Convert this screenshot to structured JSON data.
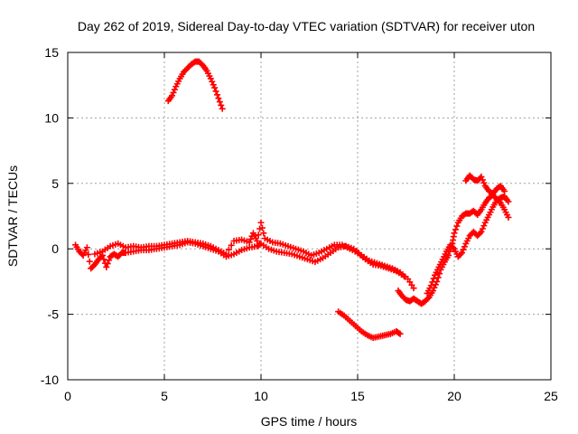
{
  "chart_data": {
    "type": "scatter",
    "title": "Day 262 of 2019, Sidereal Day-to-day VTEC variation (SDTVAR) for receiver uton",
    "xlabel": "GPS time / hours",
    "ylabel": "SDTVAR / TECUs",
    "xlim": [
      0,
      25
    ],
    "ylim": [
      -10,
      15
    ],
    "xticks": [
      0,
      5,
      10,
      15,
      20,
      25
    ],
    "yticks": [
      -10,
      -5,
      0,
      5,
      10,
      15
    ],
    "grid": true,
    "marker": "+",
    "color": "#ff0000",
    "series": [
      {
        "name": "arc-high-early",
        "points": [
          [
            5.2,
            11.3
          ],
          [
            5.4,
            11.7
          ],
          [
            5.6,
            12.4
          ],
          [
            5.8,
            13.0
          ],
          [
            6.0,
            13.5
          ],
          [
            6.2,
            13.8
          ],
          [
            6.4,
            14.1
          ],
          [
            6.6,
            14.3
          ],
          [
            6.8,
            14.3
          ],
          [
            7.0,
            14.0
          ],
          [
            7.2,
            13.6
          ],
          [
            7.4,
            13.0
          ],
          [
            7.6,
            12.3
          ],
          [
            7.8,
            11.5
          ],
          [
            8.0,
            10.7
          ]
        ]
      },
      {
        "name": "arc-main-a",
        "points": [
          [
            0.4,
            0.3
          ],
          [
            0.6,
            -0.2
          ],
          [
            0.8,
            -0.5
          ],
          [
            1.0,
            0.1
          ],
          [
            1.2,
            -1.5
          ],
          [
            1.4,
            -1.2
          ],
          [
            1.6,
            -0.8
          ],
          [
            1.8,
            -0.5
          ],
          [
            2.0,
            -1.4
          ],
          [
            2.2,
            -0.6
          ],
          [
            2.4,
            -0.4
          ],
          [
            2.6,
            -0.6
          ],
          [
            2.8,
            -0.3
          ],
          [
            3.0,
            -0.3
          ],
          [
            3.4,
            -0.2
          ],
          [
            3.8,
            -0.1
          ],
          [
            4.2,
            -0.1
          ],
          [
            4.6,
            0.0
          ],
          [
            5.0,
            0.1
          ],
          [
            5.4,
            0.2
          ],
          [
            5.8,
            0.3
          ],
          [
            6.2,
            0.5
          ],
          [
            6.6,
            0.4
          ],
          [
            7.0,
            0.2
          ],
          [
            7.4,
            0.0
          ],
          [
            7.8,
            -0.2
          ],
          [
            8.2,
            -0.6
          ],
          [
            8.6,
            -0.4
          ],
          [
            9.0,
            -0.1
          ],
          [
            9.4,
            0.1
          ],
          [
            9.8,
            0.2
          ],
          [
            10.0,
            0.4
          ],
          [
            10.4,
            0.0
          ],
          [
            10.8,
            -0.2
          ],
          [
            11.2,
            -0.3
          ],
          [
            11.6,
            -0.4
          ],
          [
            12.0,
            -0.6
          ],
          [
            12.4,
            -0.8
          ],
          [
            12.8,
            -1.0
          ],
          [
            13.2,
            -0.7
          ],
          [
            13.6,
            -0.3
          ],
          [
            14.0,
            0.1
          ],
          [
            14.4,
            0.2
          ],
          [
            14.8,
            0.0
          ],
          [
            15.2,
            -0.5
          ],
          [
            15.6,
            -0.9
          ],
          [
            16.0,
            -1.1
          ],
          [
            16.4,
            -1.3
          ],
          [
            16.8,
            -1.5
          ],
          [
            17.2,
            -1.8
          ],
          [
            17.6,
            -2.3
          ],
          [
            17.9,
            -3.0
          ]
        ]
      },
      {
        "name": "arc-main-b",
        "points": [
          [
            1.4,
            -0.4
          ],
          [
            1.8,
            -0.2
          ],
          [
            2.2,
            0.2
          ],
          [
            2.6,
            0.4
          ],
          [
            3.0,
            0.1
          ],
          [
            3.4,
            0.2
          ],
          [
            3.8,
            0.1
          ],
          [
            4.2,
            0.2
          ],
          [
            4.6,
            0.2
          ],
          [
            5.0,
            0.3
          ],
          [
            5.4,
            0.4
          ],
          [
            5.8,
            0.5
          ],
          [
            6.2,
            0.6
          ],
          [
            6.6,
            0.5
          ],
          [
            7.0,
            0.4
          ],
          [
            7.4,
            0.2
          ],
          [
            7.8,
            -0.1
          ],
          [
            8.2,
            -0.4
          ],
          [
            8.6,
            0.6
          ],
          [
            9.0,
            0.7
          ],
          [
            9.4,
            0.5
          ],
          [
            9.6,
            1.2
          ],
          [
            9.8,
            0.6
          ],
          [
            10.0,
            2.0
          ],
          [
            10.2,
            0.8
          ],
          [
            10.6,
            0.5
          ],
          [
            11.0,
            0.4
          ],
          [
            11.4,
            0.2
          ],
          [
            11.8,
            0.0
          ],
          [
            12.2,
            -0.2
          ],
          [
            12.6,
            -0.5
          ],
          [
            13.0,
            -0.3
          ],
          [
            13.4,
            0.0
          ],
          [
            13.8,
            0.3
          ],
          [
            14.2,
            0.3
          ],
          [
            14.6,
            0.0
          ],
          [
            15.0,
            -0.3
          ],
          [
            15.4,
            -0.8
          ],
          [
            15.8,
            -1.2
          ],
          [
            16.2,
            -1.3
          ],
          [
            16.6,
            -1.5
          ],
          [
            17.0,
            -1.7
          ],
          [
            17.4,
            -2.1
          ]
        ]
      },
      {
        "name": "arc-dip",
        "points": [
          [
            17.1,
            -3.2
          ],
          [
            17.3,
            -3.6
          ],
          [
            17.5,
            -3.9
          ],
          [
            17.7,
            -4.0
          ],
          [
            17.9,
            -3.8
          ],
          [
            18.1,
            -4.0
          ],
          [
            18.3,
            -4.2
          ],
          [
            18.5,
            -4.0
          ],
          [
            18.7,
            -3.7
          ],
          [
            18.9,
            -3.2
          ],
          [
            19.1,
            -2.5
          ],
          [
            19.3,
            -1.6
          ],
          [
            19.5,
            -1.0
          ],
          [
            19.7,
            -0.5
          ],
          [
            19.9,
            0.4
          ],
          [
            20.0,
            1.2
          ],
          [
            20.2,
            2.0
          ],
          [
            20.4,
            2.5
          ],
          [
            20.6,
            2.7
          ],
          [
            20.8,
            2.7
          ],
          [
            21.0,
            2.9
          ],
          [
            21.2,
            2.6
          ],
          [
            21.4,
            3.0
          ],
          [
            21.6,
            3.5
          ],
          [
            21.8,
            3.9
          ],
          [
            22.0,
            4.1
          ],
          [
            22.2,
            3.8
          ],
          [
            22.4,
            3.5
          ],
          [
            22.6,
            3.0
          ],
          [
            22.8,
            2.4
          ]
        ]
      },
      {
        "name": "arc-dip-inner",
        "points": [
          [
            18.6,
            -3.4
          ],
          [
            18.8,
            -2.8
          ],
          [
            19.0,
            -2.0
          ],
          [
            19.2,
            -1.4
          ],
          [
            19.4,
            -0.8
          ],
          [
            19.6,
            -0.2
          ],
          [
            19.8,
            0.3
          ],
          [
            20.0,
            0.0
          ],
          [
            20.2,
            -0.6
          ],
          [
            20.4,
            -0.3
          ],
          [
            20.6,
            0.4
          ],
          [
            20.8,
            1.0
          ],
          [
            21.0,
            1.3
          ],
          [
            21.2,
            1.0
          ],
          [
            21.4,
            1.3
          ],
          [
            21.6,
            2.0
          ],
          [
            21.8,
            2.6
          ],
          [
            22.0,
            3.2
          ],
          [
            22.2,
            3.7
          ],
          [
            22.4,
            3.9
          ],
          [
            22.6,
            4.0
          ],
          [
            22.8,
            3.6
          ]
        ]
      },
      {
        "name": "arc-upper-right",
        "points": [
          [
            20.6,
            5.2
          ],
          [
            20.8,
            5.6
          ],
          [
            21.0,
            5.3
          ],
          [
            21.2,
            5.2
          ],
          [
            21.4,
            5.5
          ],
          [
            21.6,
            4.8
          ],
          [
            21.8,
            4.4
          ],
          [
            22.0,
            4.2
          ],
          [
            22.2,
            4.6
          ],
          [
            22.4,
            4.8
          ],
          [
            22.6,
            4.4
          ]
        ]
      },
      {
        "name": "arc-low-midday",
        "points": [
          [
            14.0,
            -4.8
          ],
          [
            14.3,
            -5.1
          ],
          [
            14.6,
            -5.5
          ],
          [
            14.9,
            -5.9
          ],
          [
            15.2,
            -6.3
          ],
          [
            15.5,
            -6.6
          ],
          [
            15.8,
            -6.8
          ],
          [
            16.1,
            -6.7
          ],
          [
            16.4,
            -6.6
          ],
          [
            16.7,
            -6.5
          ],
          [
            17.0,
            -6.3
          ],
          [
            17.2,
            -6.5
          ]
        ]
      }
    ]
  }
}
